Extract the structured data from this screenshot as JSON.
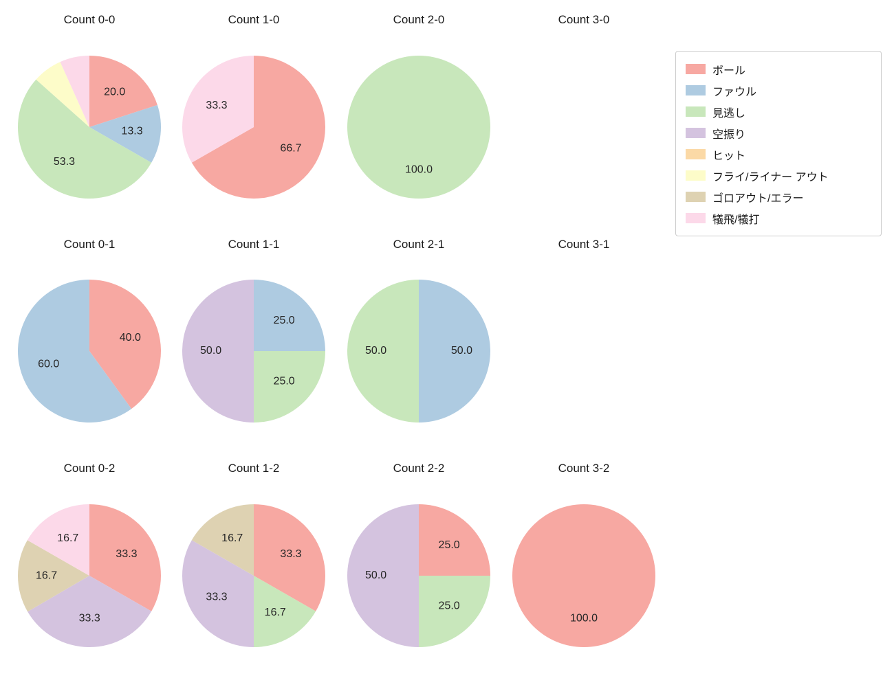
{
  "legend": {
    "items": [
      {
        "label": "ボール",
        "color": "#f7a8a2"
      },
      {
        "label": "ファウル",
        "color": "#aecbe1"
      },
      {
        "label": "見逃し",
        "color": "#c8e7bb"
      },
      {
        "label": "空振り",
        "color": "#d4c3df"
      },
      {
        "label": "ヒット",
        "color": "#fbd9a6"
      },
      {
        "label": "フライ/ライナー アウト",
        "color": "#fdfcc9"
      },
      {
        "label": "ゴロアウト/エラー",
        "color": "#ded2b2"
      },
      {
        "label": "犠飛/犠打",
        "color": "#fcd9e9"
      }
    ]
  },
  "chart_data": [
    {
      "type": "pie",
      "title": "Count 0-0",
      "start_angle": "top",
      "direction": "clockwise",
      "slices": [
        {
          "category": "ボール",
          "value": 20.0,
          "label": "20.0",
          "color": "#f7a8a2"
        },
        {
          "category": "ファウル",
          "value": 13.3,
          "label": "13.3",
          "color": "#aecbe1"
        },
        {
          "category": "見逃し",
          "value": 53.3,
          "label": "53.3",
          "color": "#c8e7bb"
        },
        {
          "category": "フライ/ライナー アウト",
          "value": 6.7,
          "label": "",
          "color": "#fdfcc9"
        },
        {
          "category": "犠飛/犠打",
          "value": 6.7,
          "label": "",
          "color": "#fcd9e9"
        }
      ]
    },
    {
      "type": "pie",
      "title": "Count 1-0",
      "start_angle": "top",
      "direction": "clockwise",
      "slices": [
        {
          "category": "ボール",
          "value": 66.7,
          "label": "66.7",
          "color": "#f7a8a2"
        },
        {
          "category": "犠飛/犠打",
          "value": 33.3,
          "label": "33.3",
          "color": "#fcd9e9"
        }
      ]
    },
    {
      "type": "pie",
      "title": "Count 2-0",
      "start_angle": "top",
      "direction": "clockwise",
      "slices": [
        {
          "category": "見逃し",
          "value": 100.0,
          "label": "100.0",
          "color": "#c8e7bb"
        }
      ]
    },
    {
      "type": "pie",
      "title": "Count 3-0",
      "start_angle": "top",
      "direction": "clockwise",
      "slices": []
    },
    {
      "type": "pie",
      "title": "Count 0-1",
      "start_angle": "top",
      "direction": "clockwise",
      "slices": [
        {
          "category": "ボール",
          "value": 40.0,
          "label": "40.0",
          "color": "#f7a8a2"
        },
        {
          "category": "ファウル",
          "value": 60.0,
          "label": "60.0",
          "color": "#aecbe1"
        }
      ]
    },
    {
      "type": "pie",
      "title": "Count 1-1",
      "start_angle": "top",
      "direction": "clockwise",
      "slices": [
        {
          "category": "ファウル",
          "value": 25.0,
          "label": "25.0",
          "color": "#aecbe1"
        },
        {
          "category": "見逃し",
          "value": 25.0,
          "label": "25.0",
          "color": "#c8e7bb"
        },
        {
          "category": "空振り",
          "value": 50.0,
          "label": "50.0",
          "color": "#d4c3df"
        }
      ]
    },
    {
      "type": "pie",
      "title": "Count 2-1",
      "start_angle": "top",
      "direction": "clockwise",
      "slices": [
        {
          "category": "ファウル",
          "value": 50.0,
          "label": "50.0",
          "color": "#aecbe1"
        },
        {
          "category": "見逃し",
          "value": 50.0,
          "label": "50.0",
          "color": "#c8e7bb"
        }
      ]
    },
    {
      "type": "pie",
      "title": "Count 3-1",
      "start_angle": "top",
      "direction": "clockwise",
      "slices": []
    },
    {
      "type": "pie",
      "title": "Count 0-2",
      "start_angle": "top",
      "direction": "clockwise",
      "slices": [
        {
          "category": "ボール",
          "value": 33.3,
          "label": "33.3",
          "color": "#f7a8a2"
        },
        {
          "category": "空振り",
          "value": 33.3,
          "label": "33.3",
          "color": "#d4c3df"
        },
        {
          "category": "ゴロアウト/エラー",
          "value": 16.7,
          "label": "16.7",
          "color": "#ded2b2"
        },
        {
          "category": "犠飛/犠打",
          "value": 16.7,
          "label": "16.7",
          "color": "#fcd9e9"
        }
      ]
    },
    {
      "type": "pie",
      "title": "Count 1-2",
      "start_angle": "top",
      "direction": "clockwise",
      "slices": [
        {
          "category": "ボール",
          "value": 33.3,
          "label": "33.3",
          "color": "#f7a8a2"
        },
        {
          "category": "見逃し",
          "value": 16.7,
          "label": "16.7",
          "color": "#c8e7bb"
        },
        {
          "category": "空振り",
          "value": 33.3,
          "label": "33.3",
          "color": "#d4c3df"
        },
        {
          "category": "ゴロアウト/エラー",
          "value": 16.7,
          "label": "16.7",
          "color": "#ded2b2"
        }
      ]
    },
    {
      "type": "pie",
      "title": "Count 2-2",
      "start_angle": "top",
      "direction": "clockwise",
      "slices": [
        {
          "category": "ボール",
          "value": 25.0,
          "label": "25.0",
          "color": "#f7a8a2"
        },
        {
          "category": "見逃し",
          "value": 25.0,
          "label": "25.0",
          "color": "#c8e7bb"
        },
        {
          "category": "空振り",
          "value": 50.0,
          "label": "50.0",
          "color": "#d4c3df"
        }
      ]
    },
    {
      "type": "pie",
      "title": "Count 3-2",
      "start_angle": "top",
      "direction": "clockwise",
      "slices": [
        {
          "category": "ボール",
          "value": 100.0,
          "label": "100.0",
          "color": "#f7a8a2"
        }
      ]
    }
  ]
}
